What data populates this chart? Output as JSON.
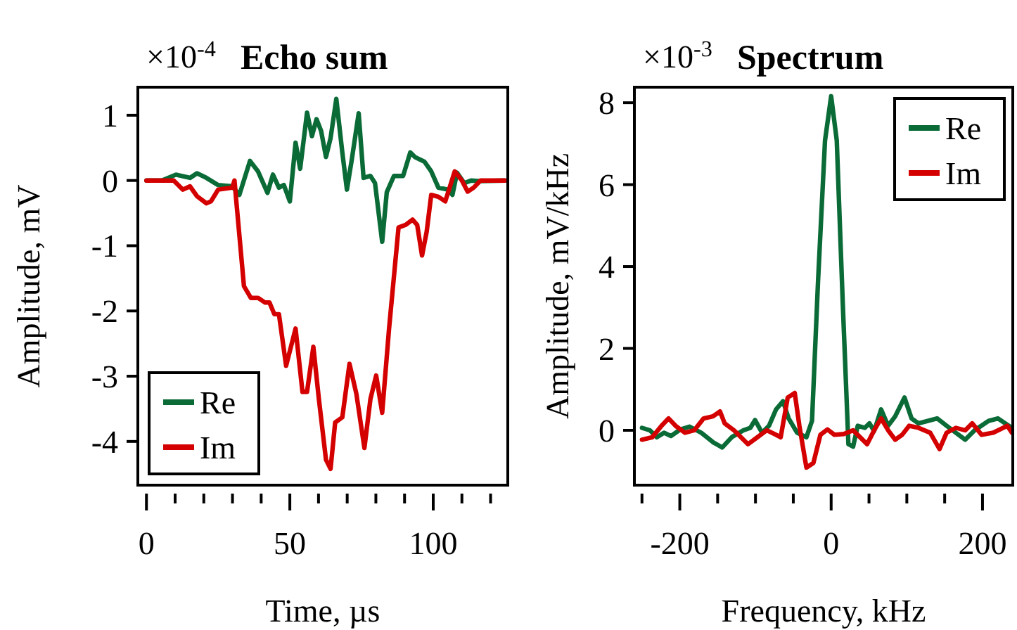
{
  "chart_data": [
    {
      "type": "line",
      "title": "Echo sum",
      "xlabel": "Time, µs",
      "ylabel": "Amplitude, mV",
      "annotations": [
        "×10$^{-4}$"
      ],
      "xlim": [
        -3,
        126
      ],
      "xticks": [
        0,
        {
          "value": 10,
          "label": null
        },
        {
          "value": 20,
          "label": null
        },
        {
          "value": 30,
          "label": null
        },
        {
          "value": 40,
          "label": null
        },
        50,
        {
          "value": 60,
          "label": null
        },
        {
          "value": 70,
          "label": null
        },
        {
          "value": 80,
          "label": null
        },
        {
          "value": 90,
          "label": null
        },
        100,
        {
          "value": 110,
          "label": null
        },
        {
          "value": 120,
          "label": null
        }
      ],
      "ylim": [
        -4.67,
        1.43
      ],
      "yticks": [
        -4,
        -3,
        -2,
        -1,
        0,
        1
      ],
      "legend": "bottom left",
      "series": [
        {
          "name": "Re",
          "color": "#0a6b37",
          "x": [
            0,
            5.4,
            10.3,
            15.2,
            17.6,
            20.9,
            25.0,
            29.9,
            32.4,
            36.1,
            38.9,
            42.2,
            44.1,
            46.2,
            47.9,
            50.0,
            52.0,
            53.6,
            56.0,
            57.7,
            59.3,
            60.9,
            62.6,
            64.2,
            66.2,
            68.3,
            69.9,
            71.6,
            74.0,
            75.7,
            78.1,
            79.7,
            82.2,
            83.8,
            86.3,
            89.5,
            92.0,
            93.6,
            96.9,
            99.3,
            101.8,
            105.1,
            106.7,
            108.3,
            110.8,
            113.2,
            116.5,
            125
          ],
          "values": [
            0,
            0,
            0.09,
            0.04,
            0.11,
            0.04,
            -0.07,
            -0.09,
            -0.22,
            0.3,
            0.14,
            -0.19,
            0.09,
            -0.11,
            -0.07,
            -0.32,
            0.58,
            0.18,
            1.04,
            0.68,
            0.94,
            0.76,
            0.36,
            0.65,
            1.25,
            0.43,
            -0.14,
            0.32,
            1.03,
            0.04,
            0.07,
            -0.04,
            -0.94,
            -0.18,
            0.07,
            0.07,
            0.43,
            0.36,
            0.29,
            0.14,
            -0.11,
            -0.14,
            -0.22,
            0.12,
            -0.04,
            0,
            -0.01,
            0
          ]
        },
        {
          "name": "Im",
          "color": "#d40000",
          "x": [
            0,
            9.5,
            12.7,
            15.2,
            17.6,
            20.9,
            22.5,
            25.0,
            29.9,
            30.7,
            31.5,
            34.0,
            36.4,
            38.9,
            41.3,
            42.9,
            44.6,
            46.2,
            48.7,
            52.0,
            54.4,
            56.0,
            58.2,
            60.1,
            62.6,
            64.2,
            65.8,
            68.3,
            70.8,
            73.2,
            76.0,
            78.1,
            80.1,
            82.2,
            84.6,
            87.9,
            90.4,
            92.8,
            94.4,
            96.1,
            97.7,
            99.3,
            101.8,
            104.2,
            107.5,
            110.0,
            112.0,
            114.1,
            116.5,
            125
          ],
          "values": [
            0,
            0,
            -0.14,
            -0.09,
            -0.24,
            -0.35,
            -0.32,
            -0.14,
            -0.11,
            0,
            -0.4,
            -1.62,
            -1.8,
            -1.8,
            -1.87,
            -1.87,
            -2.05,
            -2.05,
            -2.84,
            -2.27,
            -3.24,
            -3.24,
            -2.55,
            -3.34,
            -4.28,
            -4.42,
            -3.71,
            -3.63,
            -2.81,
            -3.27,
            -4.1,
            -3.35,
            -2.99,
            -3.56,
            -2.27,
            -0.72,
            -0.68,
            -0.6,
            -0.68,
            -1.15,
            -0.79,
            -0.22,
            -0.25,
            -0.32,
            0.14,
            0,
            -0.17,
            -0.11,
            0,
            0
          ]
        }
      ]
    },
    {
      "type": "line",
      "title": "Spectrum",
      "xlabel": "Frequency, kHz",
      "ylabel": "Amplitude, mV/kHz",
      "annotations": [
        "×10$^{-3}$"
      ],
      "xlim": [
        -260,
        240
      ],
      "xticks": [
        {
          "value": -250,
          "label": null
        },
        -200,
        {
          "value": -150,
          "label": null
        },
        {
          "value": -100,
          "label": null
        },
        {
          "value": -50,
          "label": null
        },
        0,
        {
          "value": 50,
          "label": null
        },
        {
          "value": 100,
          "label": null
        },
        {
          "value": 150,
          "label": null
        },
        200
      ],
      "ylim": [
        -1.34,
        8.38
      ],
      "yticks": [
        0,
        2,
        4,
        6,
        8
      ],
      "legend": "top right",
      "series": [
        {
          "name": "Re",
          "color": "#0a6b37",
          "x": [
            -250,
            -239.5,
            -230.3,
            -220.9,
            -211.7,
            -199.4,
            -187.1,
            -171.6,
            -156.2,
            -143.9,
            -131.4,
            -116.0,
            -106.8,
            -100.6,
            -91.3,
            -82.1,
            -72.8,
            -63.6,
            -56.2,
            -45.0,
            -32.7,
            -25.3,
            -17.3,
            -8.1,
            0,
            7.4,
            15.4,
            22.8,
            29.0,
            35.1,
            44.5,
            50.6,
            56.8,
            66.0,
            75.2,
            84.6,
            96.9,
            106.2,
            115.4,
            127.7,
            140.0,
            152.5,
            164.8,
            177.2,
            189.5,
            208.0,
            220.4,
            238.9
          ],
          "values": [
            0.06,
            0,
            -0.17,
            -0.06,
            -0.14,
            0.02,
            0.09,
            -0.06,
            -0.29,
            -0.42,
            -0.17,
            0,
            0.06,
            0.25,
            -0.06,
            0.11,
            0.51,
            0.71,
            0.29,
            -0.06,
            -0.17,
            0.23,
            3.65,
            7.08,
            8.16,
            7.08,
            3.08,
            -0.34,
            -0.4,
            0.11,
            0.06,
            0.17,
            -0.02,
            0.51,
            0.11,
            0.34,
            0.8,
            0.29,
            0.17,
            0.23,
            0.29,
            0.11,
            -0.06,
            -0.23,
            0,
            0.23,
            0.29,
            0.06
          ]
        },
        {
          "name": "Im",
          "color": "#d40000",
          "x": [
            -250,
            -236.4,
            -224.1,
            -214.8,
            -205.6,
            -193.2,
            -180.9,
            -168.5,
            -156.2,
            -146.9,
            -140.7,
            -128.4,
            -109.9,
            -97.5,
            -85.2,
            -72.8,
            -66.7,
            -57.4,
            -48.1,
            -42.0,
            -32.7,
            -23.5,
            -14.2,
            -4.9,
            4.3,
            16.7,
            29.0,
            38.3,
            47.5,
            56.8,
            66.0,
            75.3,
            84.6,
            93.8,
            103.1,
            115.4,
            130.9,
            143.2,
            152.5,
            164.8,
            177.2,
            186.4,
            198.8,
            214.2,
            232.7,
            238.9
          ],
          "values": [
            -0.23,
            -0.17,
            0.11,
            0.29,
            0.11,
            -0.06,
            0,
            0.29,
            0.34,
            0.46,
            0.17,
            0,
            -0.34,
            -0.17,
            0,
            -0.11,
            -0.17,
            0.8,
            0.91,
            0.11,
            -0.91,
            -0.8,
            -0.11,
            0.02,
            -0.11,
            -0.09,
            0,
            -0.17,
            -0.34,
            0,
            0.29,
            0,
            -0.23,
            -0.11,
            0.11,
            0.06,
            -0.06,
            -0.46,
            -0.06,
            0.06,
            0,
            0.17,
            -0.11,
            -0.06,
            0.11,
            -0.06
          ]
        }
      ]
    }
  ]
}
